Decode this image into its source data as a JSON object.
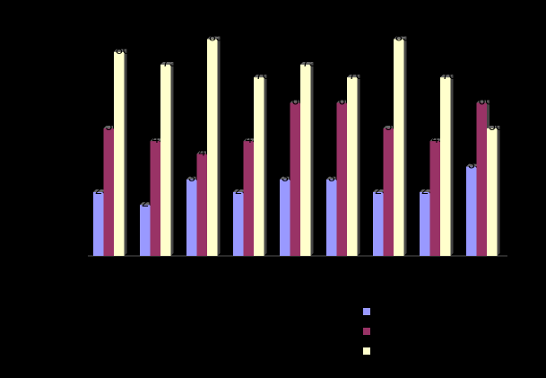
{
  "chart_data": {
    "type": "bar",
    "categories": [
      null,
      null,
      null,
      null,
      null,
      null,
      null,
      null,
      null
    ],
    "series": [
      {
        "color": "#9999ff",
        "values": [
          25,
          20,
          30,
          25,
          30,
          30,
          25,
          25,
          35
        ]
      },
      {
        "color": "#993366",
        "values": [
          50,
          45,
          40,
          45,
          60,
          60,
          50,
          45,
          60
        ]
      },
      {
        "color": "#ffffcc",
        "values": [
          80,
          75,
          85,
          70,
          75,
          70,
          85,
          70,
          50
        ]
      }
    ],
    "ylim": [
      0,
      100
    ]
  }
}
